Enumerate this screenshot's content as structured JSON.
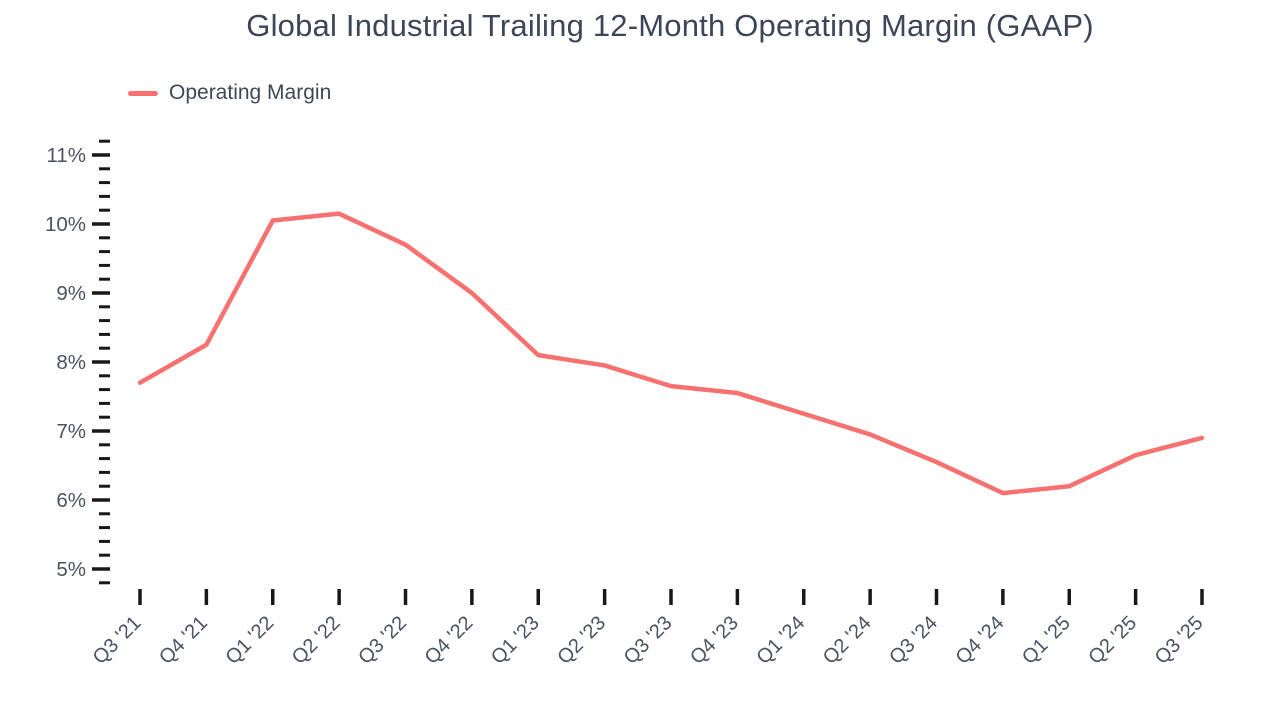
{
  "chart_data": {
    "type": "line",
    "title": "Global Industrial Trailing 12-Month Operating Margin (GAAP)",
    "legend": [
      {
        "label": "Operating Margin",
        "color": "#f87171"
      }
    ],
    "categories": [
      "Q3 '21",
      "Q4 '21",
      "Q1 '22",
      "Q2 '22",
      "Q3 '22",
      "Q4 '22",
      "Q1 '23",
      "Q2 '23",
      "Q3 '23",
      "Q4 '23",
      "Q1 '24",
      "Q2 '24",
      "Q3 '24",
      "Q4 '24",
      "Q1 '25",
      "Q2 '25",
      "Q3 '25"
    ],
    "series": [
      {
        "name": "Operating Margin",
        "values": [
          7.7,
          8.25,
          10.05,
          10.15,
          9.7,
          9.0,
          8.1,
          7.95,
          7.65,
          7.55,
          7.25,
          6.95,
          6.55,
          6.1,
          6.2,
          6.65,
          6.9
        ]
      }
    ],
    "xlabel": "",
    "ylabel": "",
    "y_axis": {
      "unit": "%",
      "tick_labels": [
        "5%",
        "6%",
        "7%",
        "8%",
        "9%",
        "10%",
        "11%"
      ],
      "label_min": 5,
      "label_max": 11,
      "major_step": 1,
      "minor_step": 0.2,
      "min": 4.8,
      "max": 11.2
    },
    "grid": false,
    "legend_position": "top-left"
  },
  "colors": {
    "line": "#f87171",
    "tick": "#18181b",
    "axis_text": "#4a5363",
    "title_text": "#3c4656",
    "background": "#ffffff"
  }
}
